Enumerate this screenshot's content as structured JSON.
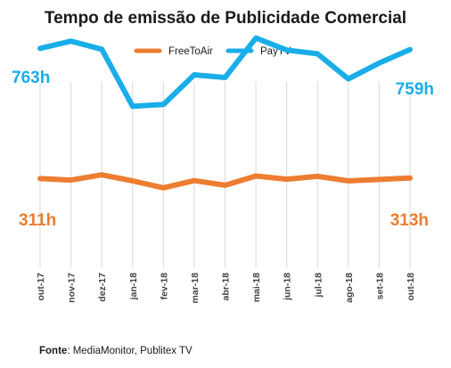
{
  "chart_data": {
    "type": "line",
    "title": "Tempo de emissão de Publicidade Comercial",
    "categories": [
      "out-17",
      "nov-17",
      "dez-17",
      "jan-18",
      "fev-18",
      "mar-18",
      "abr-18",
      "mai-18",
      "jun-18",
      "jul-18",
      "ago-18",
      "set-18",
      "out-18"
    ],
    "series": [
      {
        "name": "FreeToAir",
        "color": "#ED7D31",
        "values": [
          311,
          306,
          324,
          303,
          279,
          304,
          288,
          320,
          309,
          319,
          303,
          308,
          313
        ]
      },
      {
        "name": "PayTV",
        "color": "#1AAEE8",
        "values": [
          763,
          788,
          760,
          562,
          568,
          671,
          662,
          799,
          757,
          744,
          657,
          712,
          759
        ]
      }
    ],
    "ylim": [
      0,
      900
    ],
    "grid": "vertical",
    "legend": "top-center",
    "annotations": [
      {
        "series": "PayTV",
        "point": "first",
        "label": "763h"
      },
      {
        "series": "PayTV",
        "point": "last",
        "label": "759h"
      },
      {
        "series": "FreeToAir",
        "point": "first",
        "label": "311h"
      },
      {
        "series": "FreeToAir",
        "point": "last",
        "label": "313h"
      }
    ]
  },
  "source": {
    "label": "Fonte",
    "text": ": MediaMonitor, Publitex TV"
  }
}
